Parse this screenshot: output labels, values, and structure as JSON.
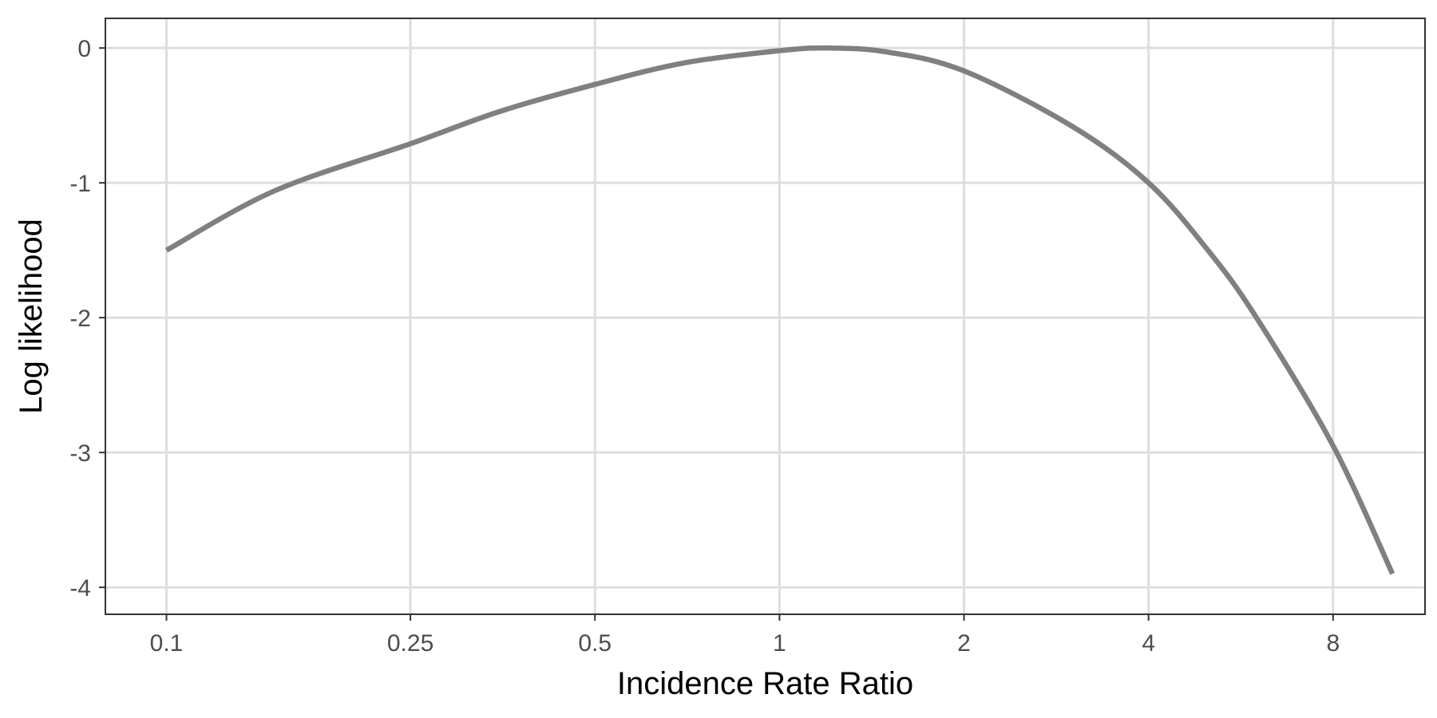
{
  "chart_data": {
    "type": "line",
    "xlabel": "Incidence Rate Ratio",
    "ylabel": "Log likelihood",
    "x_scale": "log",
    "xlim": [
      0.0795,
      11.3
    ],
    "ylim": [
      -4.2,
      0.22
    ],
    "grid": true,
    "x_ticks": [
      0.1,
      0.25,
      0.5,
      1,
      2,
      4,
      8
    ],
    "x_tick_labels": [
      "0.1",
      "0.25",
      "0.5",
      "1",
      "2",
      "4",
      "8"
    ],
    "y_ticks": [
      0,
      -1,
      -2,
      -3,
      -4
    ],
    "y_tick_labels": [
      "0",
      "-1",
      "-2",
      "-3",
      "-4"
    ],
    "series": [
      {
        "color": "#808080",
        "x": [
          0.1,
          0.15,
          0.25,
          0.35,
          0.5,
          0.7,
          1,
          1.2,
          1.5,
          2,
          3,
          4,
          5,
          6,
          8,
          10
        ],
        "y": [
          -1.5,
          -1.06,
          -0.71,
          -0.47,
          -0.27,
          -0.11,
          -0.02,
          0.0,
          -0.03,
          -0.17,
          -0.58,
          -1.0,
          -1.5,
          -2.0,
          -2.95,
          -3.9
        ]
      }
    ]
  }
}
